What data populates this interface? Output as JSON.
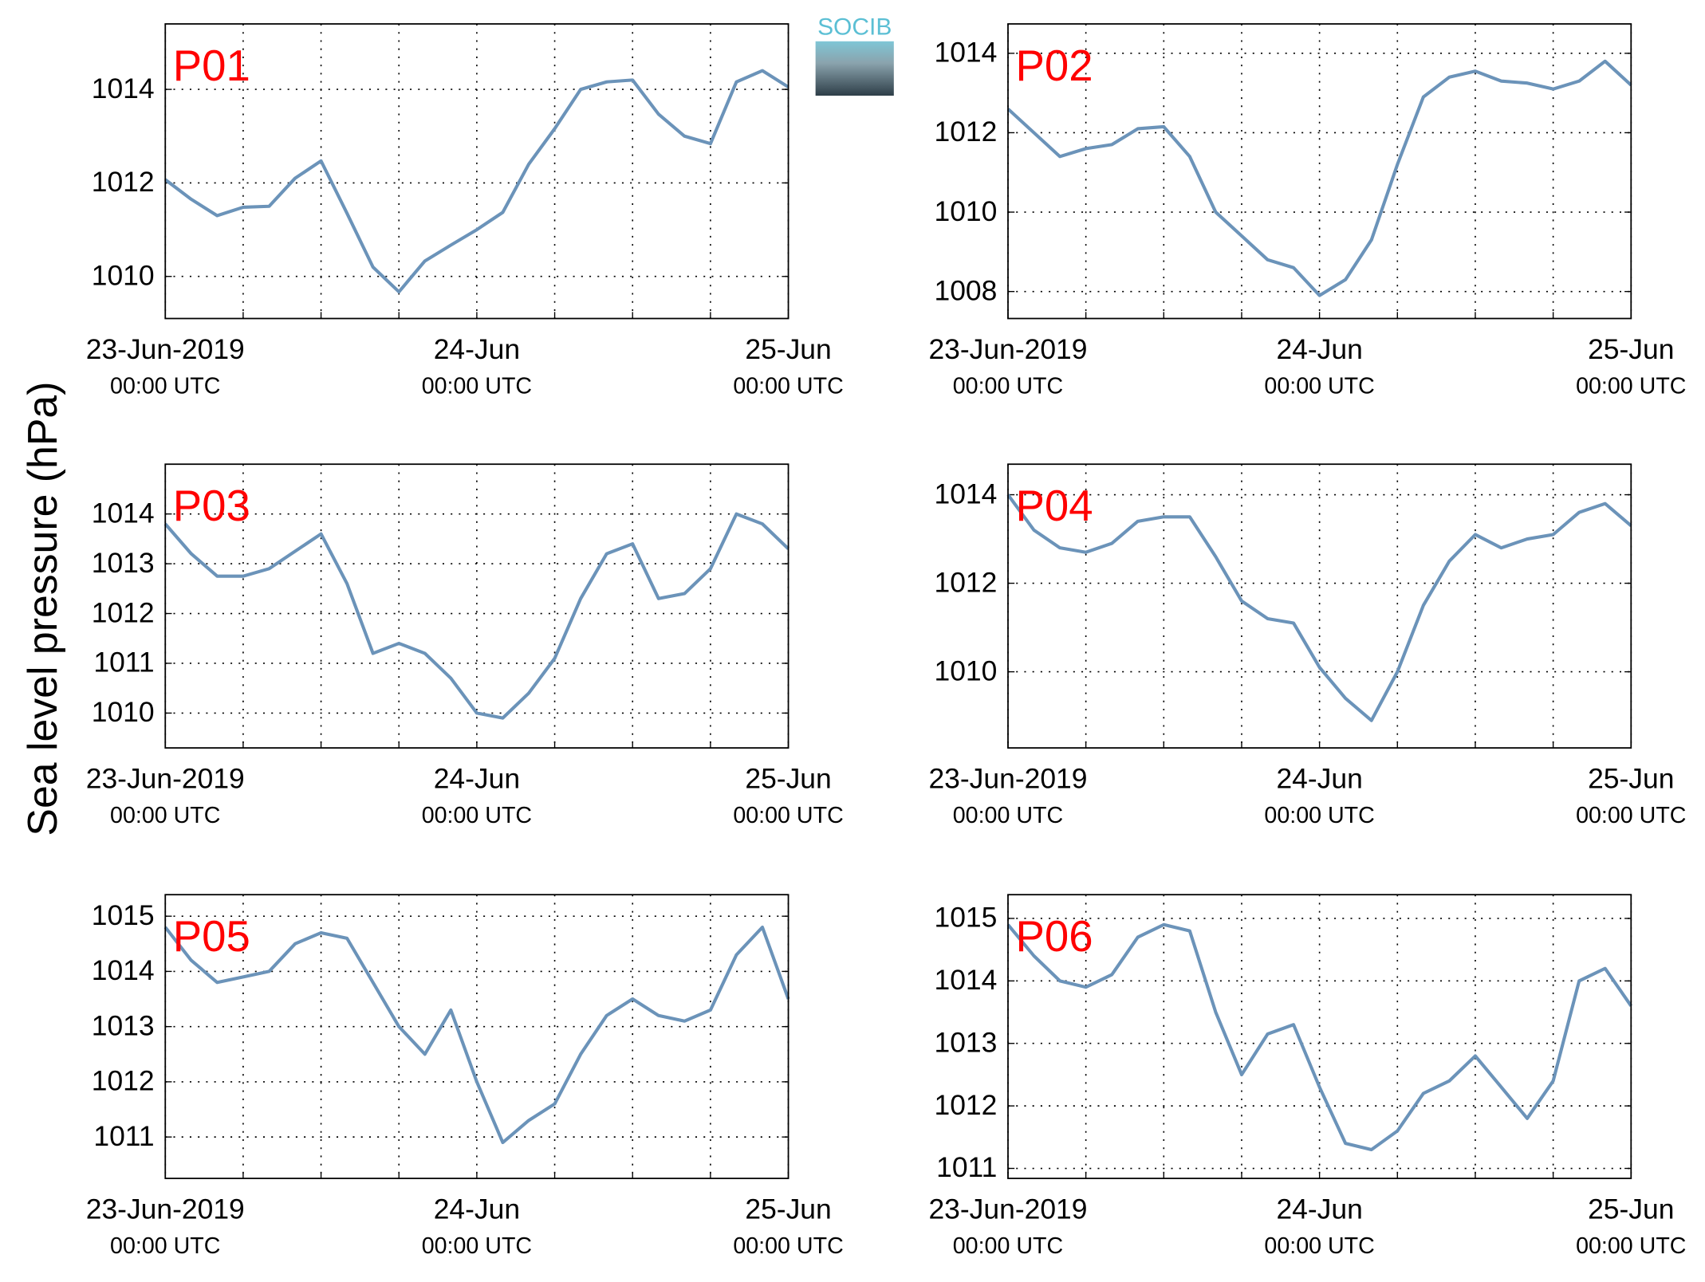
{
  "ylabel": "Sea level pressure (hPa)",
  "logo": "SOCIB",
  "chart_data": [
    {
      "type": "line",
      "title": "P01",
      "color": "#6b93b9",
      "x": [
        0,
        2,
        4,
        6,
        8,
        10,
        12,
        14,
        16,
        18,
        20,
        22,
        24,
        26,
        28,
        30,
        32,
        34,
        36,
        38,
        40,
        42,
        44,
        46,
        48
      ],
      "values": [
        1012.07,
        1011.65,
        1011.3,
        1011.48,
        1011.5,
        1012.1,
        1012.47,
        1011.35,
        1010.2,
        1009.67,
        1010.33,
        1010.67,
        1011.0,
        1011.37,
        1012.4,
        1013.16,
        1014.0,
        1014.16,
        1014.2,
        1013.47,
        1013.0,
        1012.84,
        1014.16,
        1014.4,
        1014.05
      ],
      "xlim": [
        0,
        48
      ],
      "xticks": [
        {
          "value": 0,
          "label": [
            "23-Jun-2019",
            "00:00 UTC"
          ]
        },
        {
          "value": 24,
          "label": [
            "24-Jun",
            "00:00 UTC"
          ]
        },
        {
          "value": 48,
          "label": [
            "25-Jun",
            "00:00 UTC"
          ]
        }
      ],
      "xminorticks": [
        6,
        12,
        18,
        30,
        36,
        42
      ],
      "ylim": [
        1009.1,
        1015.4
      ],
      "yticks": [
        1010,
        1012,
        1014
      ],
      "grid": true
    },
    {
      "type": "line",
      "title": "P02",
      "color": "#6b93b9",
      "x": [
        0,
        2,
        4,
        6,
        8,
        10,
        12,
        14,
        16,
        18,
        20,
        22,
        24,
        26,
        28,
        30,
        32,
        34,
        36,
        38,
        40,
        42,
        44,
        46,
        48
      ],
      "values": [
        1012.6,
        1012.0,
        1011.4,
        1011.6,
        1011.7,
        1012.1,
        1012.15,
        1011.4,
        1010.0,
        1009.4,
        1008.8,
        1008.6,
        1007.9,
        1008.3,
        1009.3,
        1011.2,
        1012.9,
        1013.4,
        1013.55,
        1013.3,
        1013.25,
        1013.1,
        1013.3,
        1013.8,
        1013.2
      ],
      "xlim": [
        0,
        48
      ],
      "xticks": [
        {
          "value": 0,
          "label": [
            "23-Jun-2019",
            "00:00 UTC"
          ]
        },
        {
          "value": 24,
          "label": [
            "24-Jun",
            "00:00 UTC"
          ]
        },
        {
          "value": 48,
          "label": [
            "25-Jun",
            "00:00 UTC"
          ]
        }
      ],
      "xminorticks": [
        6,
        12,
        18,
        30,
        36,
        42
      ],
      "ylim": [
        1007.32,
        1014.74
      ],
      "yticks": [
        1008,
        1010,
        1012,
        1014
      ],
      "grid": true
    },
    {
      "type": "line",
      "title": "P03",
      "color": "#6b93b9",
      "x": [
        0,
        2,
        4,
        6,
        8,
        10,
        12,
        14,
        16,
        18,
        20,
        22,
        24,
        26,
        28,
        30,
        32,
        34,
        36,
        38,
        40,
        42,
        44,
        46,
        48
      ],
      "values": [
        1013.8,
        1013.2,
        1012.75,
        1012.75,
        1012.9,
        1013.25,
        1013.6,
        1012.6,
        1011.2,
        1011.4,
        1011.2,
        1010.7,
        1010.0,
        1009.9,
        1010.4,
        1011.1,
        1012.3,
        1013.2,
        1013.4,
        1012.3,
        1012.4,
        1012.9,
        1014.0,
        1013.8,
        1013.3
      ],
      "xlim": [
        0,
        48
      ],
      "xticks": [
        {
          "value": 0,
          "label": [
            "23-Jun-2019",
            "00:00 UTC"
          ]
        },
        {
          "value": 24,
          "label": [
            "24-Jun",
            "00:00 UTC"
          ]
        },
        {
          "value": 48,
          "label": [
            "25-Jun",
            "00:00 UTC"
          ]
        }
      ],
      "xminorticks": [
        6,
        12,
        18,
        30,
        36,
        42
      ],
      "ylim": [
        1009.3,
        1015.0
      ],
      "yticks": [
        1010,
        1011,
        1012,
        1013,
        1014
      ],
      "grid": true
    },
    {
      "type": "line",
      "title": "P04",
      "color": "#6b93b9",
      "x": [
        0,
        2,
        4,
        6,
        8,
        10,
        12,
        14,
        16,
        18,
        20,
        22,
        24,
        26,
        28,
        30,
        32,
        34,
        36,
        38,
        40,
        42,
        44,
        46,
        48
      ],
      "values": [
        1014.0,
        1013.2,
        1012.8,
        1012.7,
        1012.9,
        1013.4,
        1013.5,
        1013.5,
        1012.6,
        1011.6,
        1011.2,
        1011.1,
        1010.1,
        1009.4,
        1008.9,
        1010.0,
        1011.5,
        1012.5,
        1013.1,
        1012.8,
        1013.0,
        1013.1,
        1013.6,
        1013.8,
        1013.3
      ],
      "xlim": [
        0,
        48
      ],
      "xticks": [
        {
          "value": 0,
          "label": [
            "23-Jun-2019",
            "00:00 UTC"
          ]
        },
        {
          "value": 24,
          "label": [
            "24-Jun",
            "00:00 UTC"
          ]
        },
        {
          "value": 48,
          "label": [
            "25-Jun",
            "00:00 UTC"
          ]
        }
      ],
      "xminorticks": [
        6,
        12,
        18,
        30,
        36,
        42
      ],
      "ylim": [
        1008.28,
        1014.69
      ],
      "yticks": [
        1010,
        1012,
        1014
      ],
      "grid": true
    },
    {
      "type": "line",
      "title": "P05",
      "color": "#6b93b9",
      "x": [
        0,
        2,
        4,
        6,
        8,
        10,
        12,
        14,
        16,
        18,
        20,
        22,
        24,
        26,
        28,
        30,
        32,
        34,
        36,
        38,
        40,
        42,
        44,
        46,
        48
      ],
      "values": [
        1014.8,
        1014.2,
        1013.8,
        1013.9,
        1014.0,
        1014.5,
        1014.7,
        1014.6,
        1013.8,
        1013.0,
        1012.5,
        1013.3,
        1012.0,
        1010.9,
        1011.3,
        1011.6,
        1012.5,
        1013.2,
        1013.5,
        1013.2,
        1013.1,
        1013.3,
        1014.3,
        1014.8,
        1013.5
      ],
      "xlim": [
        0,
        48
      ],
      "xticks": [
        {
          "value": 0,
          "label": [
            "23-Jun-2019",
            "00:00 UTC"
          ]
        },
        {
          "value": 24,
          "label": [
            "24-Jun",
            "00:00 UTC"
          ]
        },
        {
          "value": 48,
          "label": [
            "25-Jun",
            "00:00 UTC"
          ]
        }
      ],
      "xminorticks": [
        6,
        12,
        18,
        30,
        36,
        42
      ],
      "ylim": [
        1010.25,
        1015.39
      ],
      "yticks": [
        1011,
        1012,
        1013,
        1014,
        1015
      ],
      "grid": true
    },
    {
      "type": "line",
      "title": "P06",
      "color": "#6b93b9",
      "x": [
        0,
        2,
        4,
        6,
        8,
        10,
        12,
        14,
        16,
        18,
        20,
        22,
        24,
        26,
        28,
        30,
        32,
        34,
        36,
        38,
        40,
        42,
        44,
        46,
        48
      ],
      "values": [
        1014.9,
        1014.4,
        1014.0,
        1013.9,
        1014.1,
        1014.7,
        1014.9,
        1014.8,
        1013.5,
        1012.5,
        1013.15,
        1013.3,
        1012.3,
        1011.4,
        1011.3,
        1011.6,
        1012.2,
        1012.4,
        1012.8,
        1012.3,
        1011.8,
        1012.4,
        1014.0,
        1014.2,
        1013.6
      ],
      "xlim": [
        0,
        48
      ],
      "xticks": [
        {
          "value": 0,
          "label": [
            "23-Jun-2019",
            "00:00 UTC"
          ]
        },
        {
          "value": 24,
          "label": [
            "24-Jun",
            "00:00 UTC"
          ]
        },
        {
          "value": 48,
          "label": [
            "25-Jun",
            "00:00 UTC"
          ]
        }
      ],
      "xminorticks": [
        6,
        12,
        18,
        30,
        36,
        42
      ],
      "ylim": [
        1010.84,
        1015.38
      ],
      "yticks": [
        1011,
        1012,
        1013,
        1014,
        1015
      ],
      "grid": true
    }
  ]
}
